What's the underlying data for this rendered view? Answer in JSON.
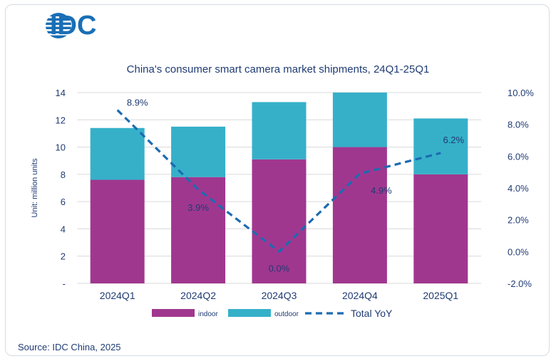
{
  "brand": {
    "logo_text": "IDC"
  },
  "footer": {
    "source": "Source: IDC China, 2025"
  },
  "chart_data": {
    "type": "bar",
    "stacked": true,
    "title": "China's consumer smart camera market shipments, 24Q1-25Q1",
    "ylabel": "Unit: million units",
    "categories": [
      "2024Q1",
      "2024Q2",
      "2024Q3",
      "2024Q4",
      "2025Q1"
    ],
    "ylim": [
      0,
      14
    ],
    "yticks": [
      "-",
      "2",
      "4",
      "6",
      "8",
      "10",
      "12",
      "14"
    ],
    "y2lim": [
      -2.0,
      10.0
    ],
    "y2ticks": [
      "-2.0%",
      "0.0%",
      "2.0%",
      "4.0%",
      "6.0%",
      "8.0%",
      "10.0%"
    ],
    "grid": true,
    "legend_position": "bottom",
    "series": [
      {
        "name": "indoor",
        "values": [
          7.6,
          7.8,
          9.1,
          10.0,
          8.0
        ],
        "color": "#a0378f"
      },
      {
        "name": "outdoor",
        "values": [
          3.8,
          3.7,
          4.2,
          4.0,
          4.1
        ],
        "color": "#36b0c9"
      }
    ],
    "line_series": {
      "name": "Total YoY",
      "axis": "right",
      "color": "#1c6bb0",
      "style": "dashed",
      "values": [
        8.9,
        3.9,
        0.0,
        4.9,
        6.2
      ],
      "labels": [
        "8.9%",
        "3.9%",
        "0.0%",
        "4.9%",
        "6.2%"
      ]
    }
  }
}
